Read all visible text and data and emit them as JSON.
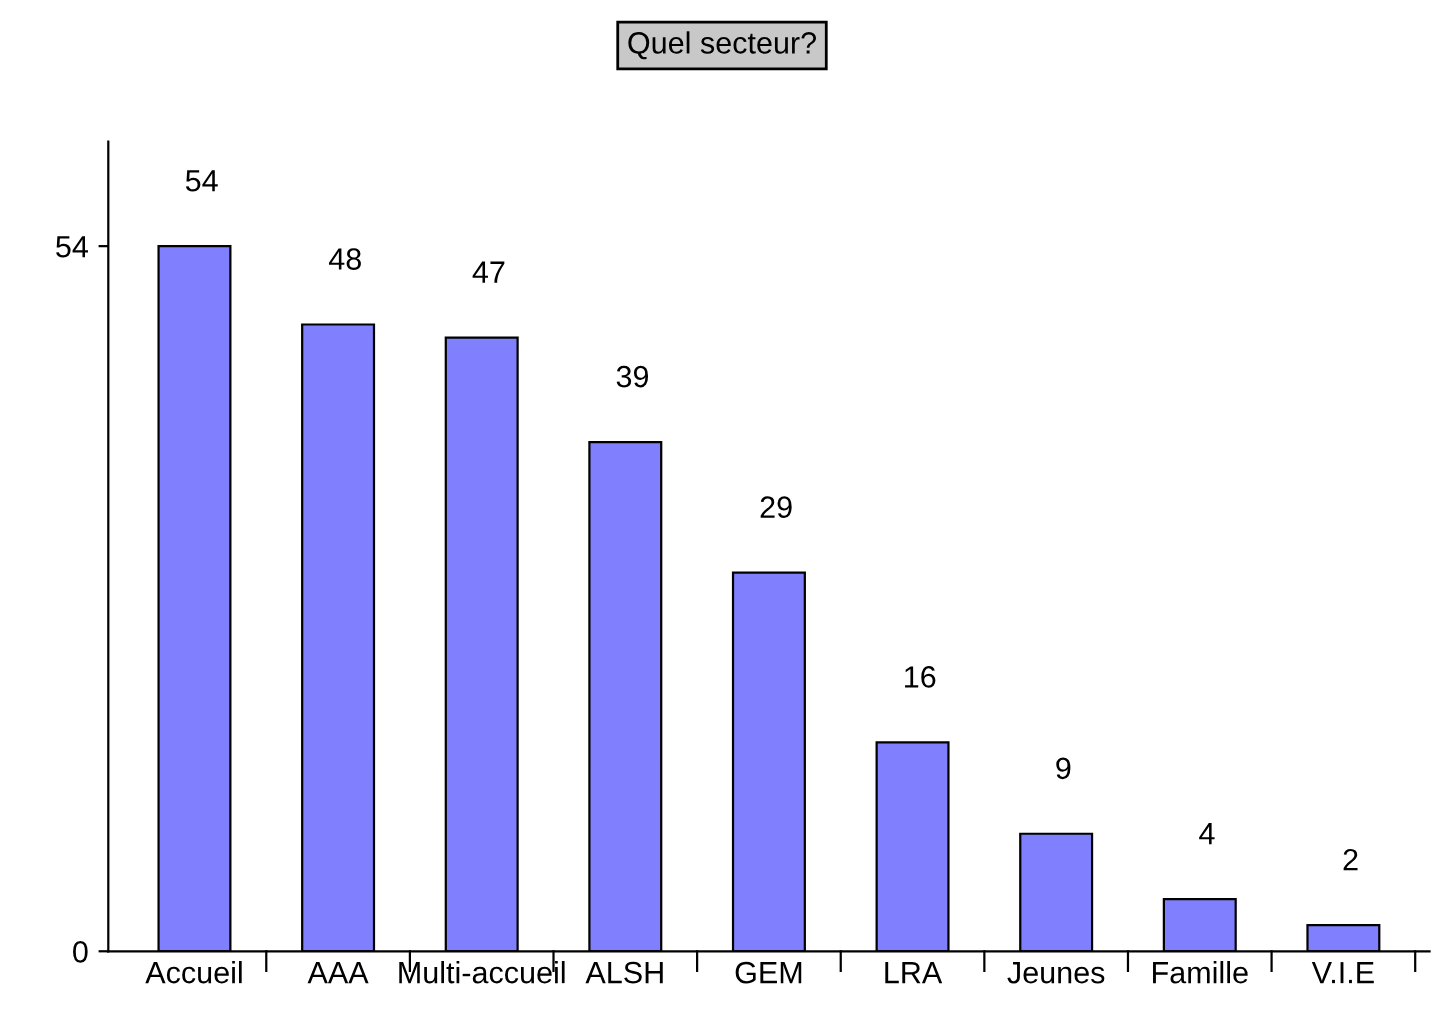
{
  "chart_data": {
    "type": "bar",
    "title": "Quel secteur?",
    "categories": [
      "Accueil",
      "AAA",
      "Multi-accueil",
      "ALSH",
      "GEM",
      "LRA",
      "Jeunes",
      "Famille",
      "V.I.E"
    ],
    "values": [
      54,
      48,
      47,
      39,
      29,
      16,
      9,
      4,
      2
    ],
    "color": "#8080ff",
    "ylim": [
      0,
      62
    ],
    "yticks": [
      0,
      54
    ],
    "grid": false,
    "data_labels": true
  }
}
